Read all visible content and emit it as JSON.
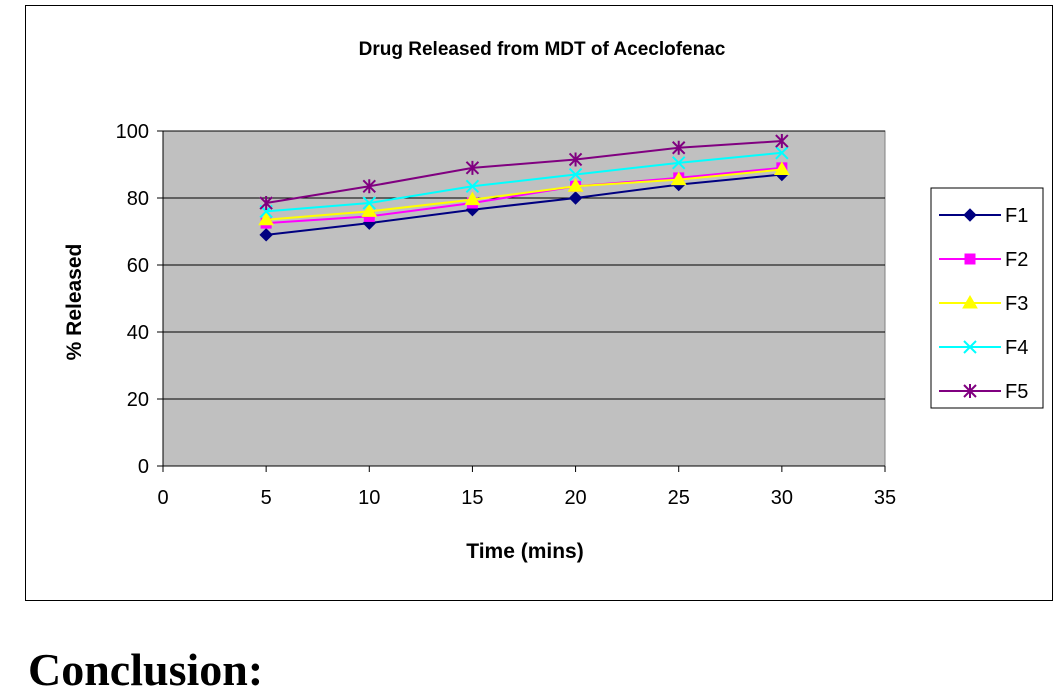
{
  "chart_data": {
    "type": "line",
    "title": "Drug Released from MDT of Aceclofenac",
    "xlabel": "Time (mins)",
    "ylabel": "% Released",
    "xlim": [
      0,
      35
    ],
    "ylim": [
      0,
      100
    ],
    "x_ticks": [
      "0",
      "5",
      "10",
      "15",
      "20",
      "25",
      "30",
      "35"
    ],
    "y_ticks": [
      "0",
      "20",
      "40",
      "60",
      "80",
      "100"
    ],
    "x": [
      5,
      10,
      15,
      20,
      25,
      30
    ],
    "grid": "horizontal",
    "plot_background": "#c0c0c0",
    "legend_position": "right",
    "series": [
      {
        "name": "F1",
        "color": "#000080",
        "marker": "diamond",
        "values": [
          69,
          72.5,
          76.5,
          80,
          84,
          87
        ]
      },
      {
        "name": "F2",
        "color": "#ff00ff",
        "marker": "square",
        "values": [
          72.5,
          74.5,
          78.5,
          83.5,
          86,
          89
        ]
      },
      {
        "name": "F3",
        "color": "#ffff00",
        "marker": "triangle",
        "values": [
          73.5,
          76,
          79.5,
          83.5,
          85.5,
          88.5
        ]
      },
      {
        "name": "F4",
        "color": "#00ffff",
        "marker": "x",
        "values": [
          76,
          78.5,
          83.5,
          87,
          90.5,
          93.5
        ]
      },
      {
        "name": "F5",
        "color": "#800080",
        "marker": "star",
        "values": [
          78.5,
          83.5,
          89,
          91.5,
          95,
          97
        ]
      }
    ]
  },
  "footer": {
    "heading": "Conclusion:"
  }
}
